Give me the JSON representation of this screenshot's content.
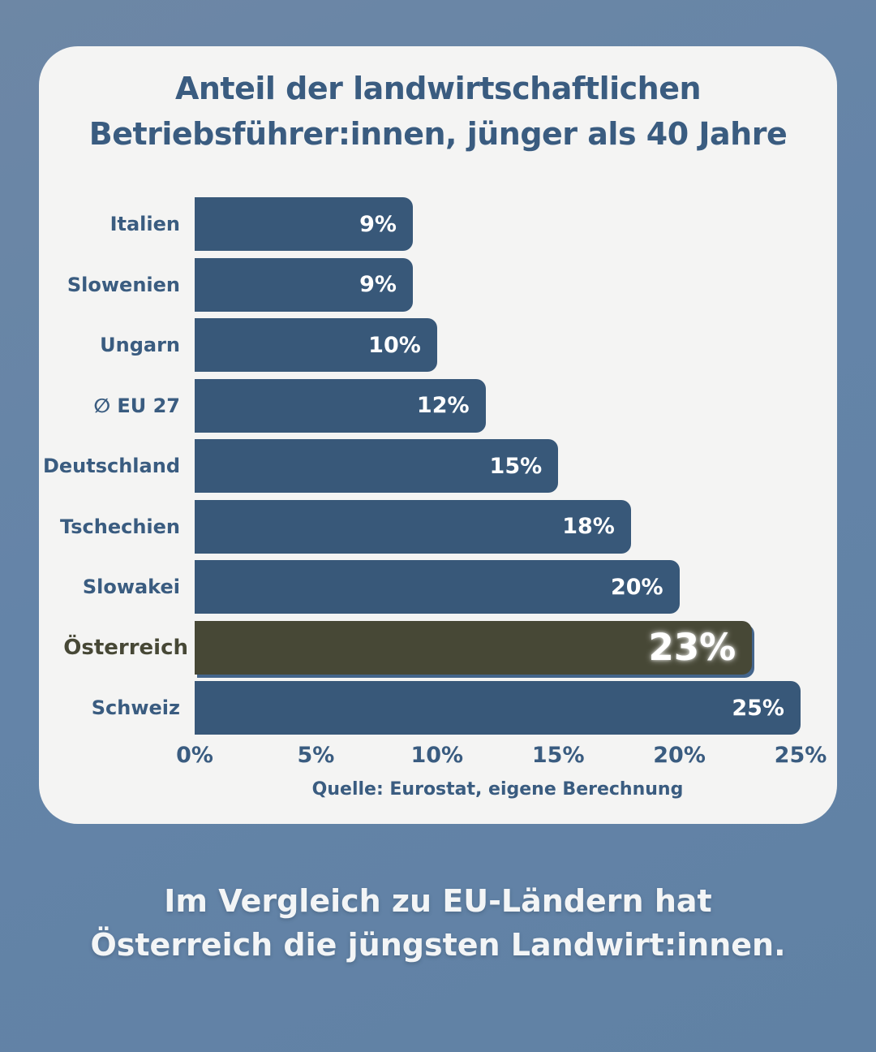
{
  "chart_data": {
    "type": "bar",
    "orientation": "horizontal",
    "title_line1": "Anteil der landwirtschaftlichen",
    "title_line2": "Betriebsführer:innen, jünger als 40 Jahre",
    "categories": [
      "Italien",
      "Slowenien",
      "Ungarn",
      "∅ EU 27",
      "Deutschland",
      "Tschechien",
      "Slowakei",
      "Österreich",
      "Schweiz"
    ],
    "values": [
      9,
      9,
      10,
      12,
      15,
      18,
      20,
      23,
      25
    ],
    "value_labels": [
      "9%",
      "9%",
      "10%",
      "12%",
      "15%",
      "18%",
      "20%",
      "23%",
      "25%"
    ],
    "highlight_index": 7,
    "highlight_category": "Österreich",
    "xlim": [
      0,
      25
    ],
    "x_tick_labels": [
      "0%",
      "5%",
      "10%",
      "15%",
      "20%",
      "25%"
    ],
    "grid": false,
    "legend": "none",
    "source": "Quelle: Eurostat, eigene Berechnung",
    "colors": {
      "bar": "#385879",
      "highlight_bar": "#474836",
      "category_text": "#3a5c80",
      "value_text": "#ffffff",
      "card_background": "#f4f4f3",
      "page_background": "#6484a8",
      "caption_text": "#f3f5f6"
    }
  },
  "caption": {
    "line1": "Im Vergleich zu EU-Ländern hat",
    "line2": "Österreich die jüngsten Landwirt:innen."
  }
}
